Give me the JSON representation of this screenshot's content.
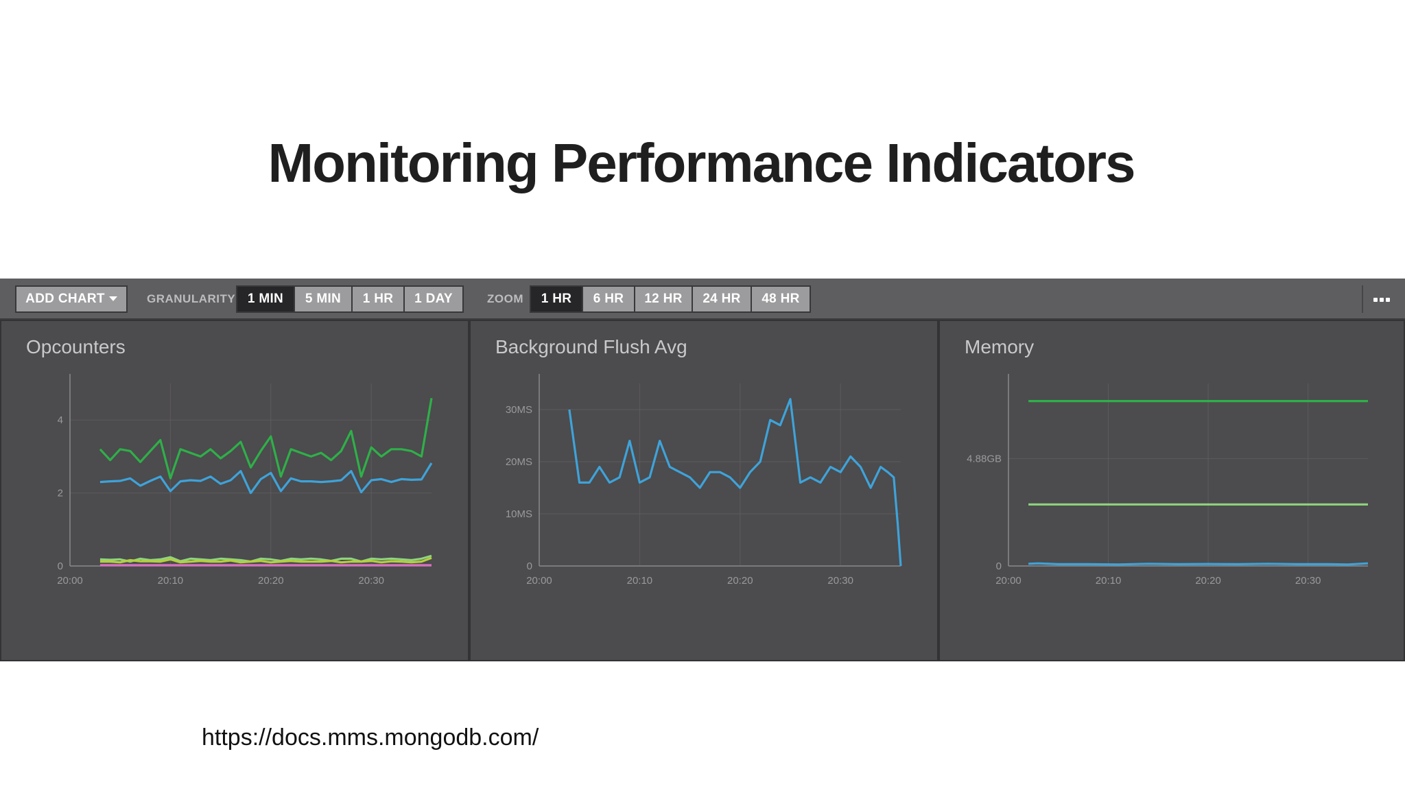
{
  "slide": {
    "title": "Monitoring Performance Indicators",
    "source_url": "https://docs.mms.mongodb.com/"
  },
  "toolbar": {
    "add_chart_label": "ADD CHART",
    "granularity_label": "GRANULARITY",
    "granularity_options": [
      "1 MIN",
      "5 MIN",
      "1 HR",
      "1 DAY"
    ],
    "granularity_selected": "1 MIN",
    "zoom_label": "ZOOM",
    "zoom_options": [
      "1 HR",
      "6 HR",
      "12 HR",
      "24 HR",
      "48 HR"
    ],
    "zoom_selected": "1 HR",
    "more_icon": "ellipsis-icon"
  },
  "colors": {
    "toolbar_bg": "#5e5d5f",
    "panel_bg": "#4c4b4d",
    "button_bg": "#9c9b9d",
    "button_active_bg": "#262527",
    "grid": "#5c5b5d",
    "axis": "#8a898b",
    "blue": "#3ea3da",
    "green": "#2eb049",
    "light_green": "#8fd47e",
    "yellow_green": "#b7cf3c",
    "pink": "#d86fc0"
  },
  "chart_data": [
    {
      "type": "line",
      "title": "Opcounters",
      "x_tick_labels": [
        "20:00",
        "20:10",
        "20:20",
        "20:30"
      ],
      "x_ticks": [
        0,
        10,
        20,
        30
      ],
      "xlim": [
        0,
        36
      ],
      "y_tick_labels": [
        "0",
        "2",
        "4"
      ],
      "y_ticks": [
        0,
        2,
        4
      ],
      "ylim": [
        0,
        5
      ],
      "series": [
        {
          "name": "green",
          "color": "#2eb049",
          "x": [
            3,
            4,
            5,
            6,
            7,
            8,
            9,
            10,
            11,
            12,
            13,
            14,
            15,
            16,
            17,
            18,
            19,
            20,
            21,
            22,
            23,
            24,
            25,
            26,
            27,
            28,
            29,
            30,
            31,
            32,
            33,
            34,
            35,
            36
          ],
          "values": [
            3.2,
            2.9,
            3.2,
            3.15,
            2.85,
            3.15,
            3.45,
            2.4,
            3.2,
            3.1,
            3.0,
            3.2,
            2.95,
            3.15,
            3.4,
            2.7,
            3.15,
            3.55,
            2.45,
            3.2,
            3.1,
            3.0,
            3.1,
            2.9,
            3.15,
            3.7,
            2.45,
            3.25,
            3.0,
            3.2,
            3.2,
            3.15,
            3.0,
            4.6
          ]
        },
        {
          "name": "blue",
          "color": "#3ea3da",
          "x": [
            3,
            4,
            5,
            6,
            7,
            8,
            9,
            10,
            11,
            12,
            13,
            14,
            15,
            16,
            17,
            18,
            19,
            20,
            21,
            22,
            23,
            24,
            25,
            26,
            27,
            28,
            29,
            30,
            31,
            32,
            33,
            34,
            35,
            36
          ],
          "values": [
            2.3,
            2.32,
            2.33,
            2.4,
            2.2,
            2.33,
            2.45,
            2.05,
            2.32,
            2.35,
            2.33,
            2.45,
            2.25,
            2.35,
            2.6,
            2.0,
            2.38,
            2.55,
            2.05,
            2.4,
            2.32,
            2.32,
            2.3,
            2.32,
            2.35,
            2.6,
            2.02,
            2.35,
            2.38,
            2.3,
            2.38,
            2.36,
            2.37,
            2.82
          ]
        },
        {
          "name": "light-green",
          "color": "#8fd47e",
          "x": [
            3,
            4,
            5,
            6,
            7,
            8,
            9,
            10,
            11,
            12,
            13,
            14,
            15,
            16,
            17,
            18,
            19,
            20,
            21,
            22,
            23,
            24,
            25,
            26,
            27,
            28,
            29,
            30,
            31,
            32,
            33,
            34,
            35,
            36
          ],
          "values": [
            0.18,
            0.17,
            0.18,
            0.12,
            0.2,
            0.16,
            0.18,
            0.24,
            0.13,
            0.2,
            0.18,
            0.16,
            0.2,
            0.18,
            0.16,
            0.12,
            0.2,
            0.18,
            0.14,
            0.2,
            0.18,
            0.2,
            0.18,
            0.14,
            0.2,
            0.2,
            0.12,
            0.2,
            0.18,
            0.2,
            0.18,
            0.16,
            0.2,
            0.28
          ]
        },
        {
          "name": "yellow-green",
          "color": "#b7cf3c",
          "x": [
            3,
            4,
            5,
            6,
            7,
            8,
            9,
            10,
            11,
            12,
            13,
            14,
            15,
            16,
            17,
            18,
            19,
            20,
            21,
            22,
            23,
            24,
            25,
            26,
            27,
            28,
            29,
            30,
            31,
            32,
            33,
            34,
            35,
            36
          ],
          "values": [
            0.12,
            0.12,
            0.1,
            0.16,
            0.13,
            0.13,
            0.12,
            0.18,
            0.1,
            0.12,
            0.14,
            0.12,
            0.12,
            0.15,
            0.1,
            0.12,
            0.14,
            0.1,
            0.12,
            0.14,
            0.12,
            0.12,
            0.12,
            0.14,
            0.1,
            0.12,
            0.12,
            0.14,
            0.1,
            0.13,
            0.12,
            0.1,
            0.12,
            0.22
          ]
        },
        {
          "name": "pink",
          "color": "#d86fc0",
          "x": [
            3,
            36
          ],
          "values": [
            0.02,
            0.02
          ]
        }
      ]
    },
    {
      "type": "line",
      "title": "Background Flush Avg",
      "x_tick_labels": [
        "20:00",
        "20:10",
        "20:20",
        "20:30"
      ],
      "x_ticks": [
        0,
        10,
        20,
        30
      ],
      "xlim": [
        0,
        36
      ],
      "y_tick_labels": [
        "0",
        "10MS",
        "20MS",
        "30MS"
      ],
      "y_ticks": [
        0,
        10,
        20,
        30
      ],
      "ylim": [
        0,
        35
      ],
      "series": [
        {
          "name": "blue",
          "color": "#3ea3da",
          "x": [
            3,
            4,
            5,
            6,
            7,
            8,
            9,
            10,
            11,
            12,
            13,
            14,
            15,
            16,
            17,
            18,
            19,
            20,
            21,
            22,
            23,
            24,
            25,
            26,
            27,
            28,
            29,
            30,
            31,
            32,
            33,
            34,
            34.7,
            35.3,
            35.7,
            36
          ],
          "values": [
            30,
            16,
            16,
            19,
            16,
            17,
            24,
            16,
            17,
            24,
            19,
            18,
            17,
            15,
            18,
            18,
            17,
            15,
            18,
            20,
            28,
            27,
            32,
            16,
            17,
            16,
            19,
            18,
            21,
            19,
            15,
            19,
            18,
            17,
            8,
            0
          ]
        }
      ]
    },
    {
      "type": "line",
      "title": "Memory",
      "x_tick_labels": [
        "20:00",
        "20:10",
        "20:20",
        "20:30"
      ],
      "x_ticks": [
        0,
        10,
        20,
        30
      ],
      "xlim": [
        0,
        36
      ],
      "y_tick_labels": [
        "0",
        "4.88GB"
      ],
      "y_ticks": [
        0,
        4.88
      ],
      "ylim": [
        0,
        8.3
      ],
      "series": [
        {
          "name": "green",
          "color": "#2eb049",
          "x": [
            2,
            36
          ],
          "values": [
            7.5,
            7.5
          ]
        },
        {
          "name": "light-green",
          "color": "#8fd47e",
          "x": [
            2,
            36
          ],
          "values": [
            2.8,
            2.8
          ]
        },
        {
          "name": "blue",
          "color": "#3ea3da",
          "x": [
            2,
            3,
            5,
            8,
            11,
            14,
            17,
            20,
            23,
            26,
            29,
            32,
            34,
            36
          ],
          "values": [
            0.1,
            0.12,
            0.08,
            0.08,
            0.07,
            0.1,
            0.08,
            0.09,
            0.08,
            0.1,
            0.08,
            0.08,
            0.07,
            0.12
          ]
        }
      ]
    }
  ]
}
